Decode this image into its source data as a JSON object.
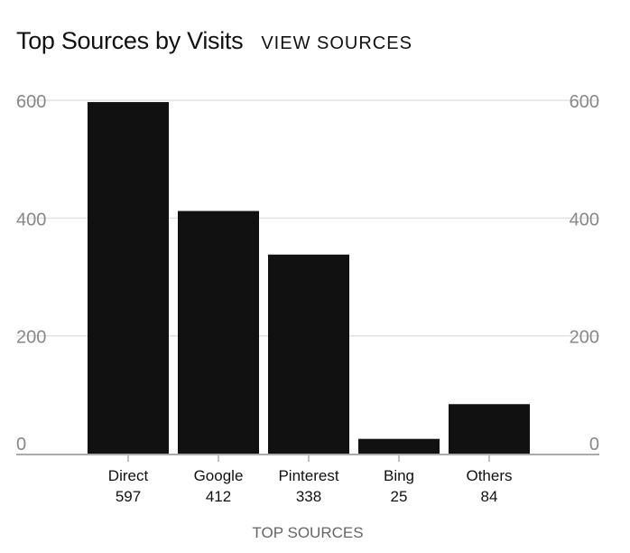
{
  "header": {
    "title": "Top Sources by Visits",
    "view_link": "VIEW SOURCES"
  },
  "colors": {
    "bar": "#111111",
    "grid": "#e2e2e2",
    "baseline": "#aaaaaa",
    "tick_text": "#888888",
    "label_text": "#111111",
    "axis_title": "#666666"
  },
  "chart_data": {
    "type": "bar",
    "title": "Top Sources by Visits",
    "xlabel": "TOP SOURCES",
    "ylabel": "",
    "categories": [
      "Direct",
      "Google",
      "Pinterest",
      "Bing",
      "Others"
    ],
    "values": [
      597,
      412,
      338,
      25,
      84
    ],
    "value_labels": [
      "597",
      "412",
      "338",
      "25",
      "84"
    ],
    "ylim": [
      0,
      600
    ],
    "yticks": [
      0,
      200,
      400,
      600
    ],
    "grid": true,
    "dual_y_axis": true,
    "legend": "none"
  }
}
